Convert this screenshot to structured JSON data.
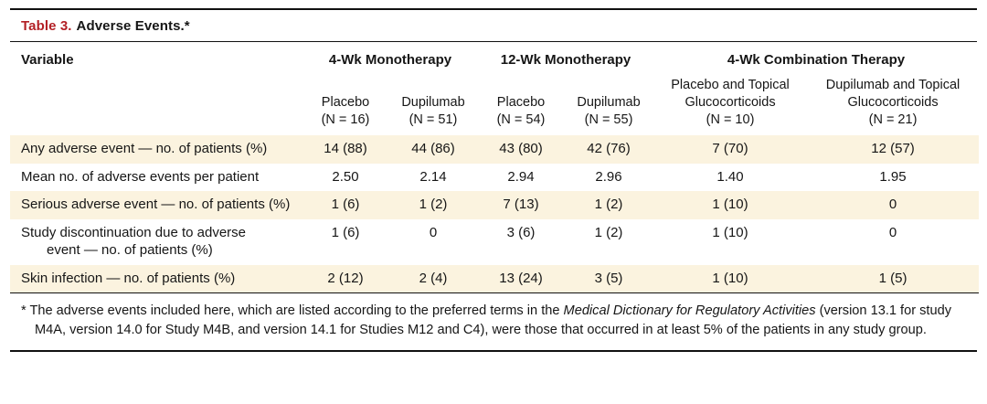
{
  "table": {
    "label": "Table 3.",
    "title": "Adverse Events.*",
    "variable_header": "Variable",
    "groups": [
      {
        "label": "4-Wk Monotherapy"
      },
      {
        "label": "12-Wk Monotherapy"
      },
      {
        "label": "4-Wk Combination Therapy"
      }
    ],
    "subcolumns": [
      "Placebo\n(N = 16)",
      "Dupilumab\n(N = 51)",
      "Placebo\n(N = 54)",
      "Dupilumab\n(N = 55)",
      "Placebo and Topical\nGlucocorticoids\n(N = 10)",
      "Dupilumab and Topical\nGlucocorticoids\n(N = 21)"
    ],
    "rows": [
      {
        "variable": "Any adverse event — no. of patients (%)",
        "values": [
          "14 (88)",
          "44 (86)",
          "43 (80)",
          "42 (76)",
          "7 (70)",
          "12 (57)"
        ]
      },
      {
        "variable": "Mean no. of adverse events per patient",
        "values": [
          "2.50",
          "2.14",
          "2.94",
          "2.96",
          "1.40",
          "1.95"
        ]
      },
      {
        "variable": "Serious adverse event — no. of patients (%)",
        "values": [
          "1 (6)",
          "1 (2)",
          "7 (13)",
          "1 (2)",
          "1 (10)",
          "0"
        ]
      },
      {
        "variable": "Study discontinuation due to adverse\nevent — no. of patients (%)",
        "values": [
          "1 (6)",
          "0",
          "3 (6)",
          "1 (2)",
          "1 (10)",
          "0"
        ]
      },
      {
        "variable": "Skin infection — no. of patients (%)",
        "values": [
          "2 (12)",
          "2 (4)",
          "13 (24)",
          "3 (5)",
          "1 (10)",
          "1 (5)"
        ]
      }
    ],
    "footnote": {
      "marker": "*",
      "part1": " The adverse events included here, which are listed according to the preferred terms in the ",
      "italic": "Medical Dictionary for Regulatory Activities",
      "part2": " (version 13.1 for study M4A, version 14.0 for Study M4B, and version 14.1 for Studies M12 and C4), were those that occurred in at least 5% of the patients in any study group."
    }
  }
}
